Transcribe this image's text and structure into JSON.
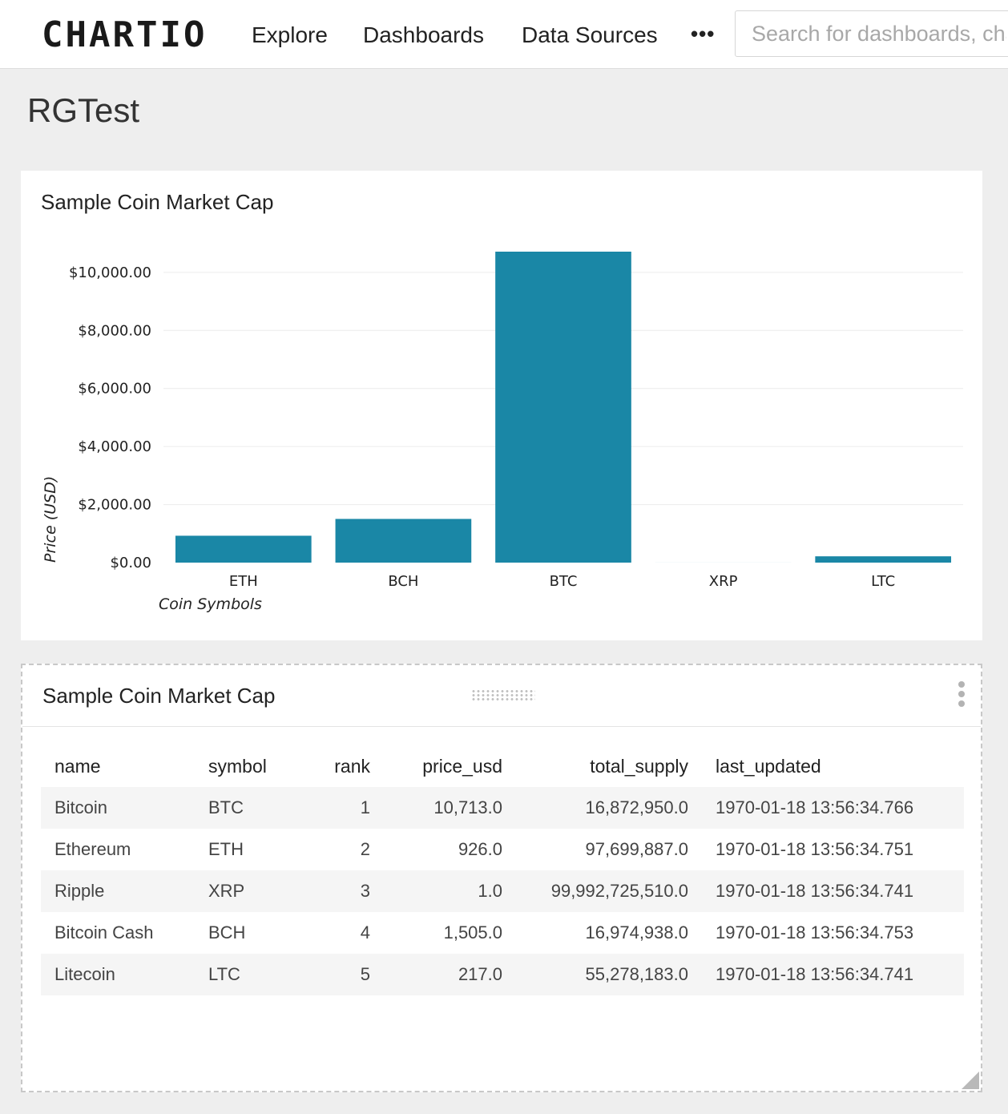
{
  "app": {
    "logo": "CHARTIO",
    "nav": [
      {
        "label": "Explore"
      },
      {
        "label": "Dashboards"
      },
      {
        "label": "Data Sources"
      }
    ],
    "more_label": "•••",
    "search_placeholder": "Search for dashboards, charts"
  },
  "dashboard": {
    "title": "RGTest"
  },
  "chart_panel": {
    "title": "Sample Coin Market Cap"
  },
  "chart_data": {
    "type": "bar",
    "title": "Sample Coin Market Cap",
    "categories": [
      "ETH",
      "BCH",
      "BTC",
      "XRP",
      "LTC"
    ],
    "values": [
      926.0,
      1505.0,
      10713.0,
      1.0,
      217.0
    ],
    "xlabel": "Coin Symbols",
    "ylabel": "Price (USD)",
    "ylim": [
      0,
      10713
    ],
    "yticks": [
      0,
      2000,
      4000,
      6000,
      8000,
      10000
    ],
    "ytick_labels": [
      "$0.00",
      "$2,000.00",
      "$4,000.00",
      "$6,000.00",
      "$8,000.00",
      "$10,000.00"
    ],
    "grid": true,
    "bar_color": "#1a87a6"
  },
  "table_panel": {
    "title": "Sample Coin Market Cap",
    "columns": [
      "name",
      "symbol",
      "rank",
      "price_usd",
      "total_supply",
      "last_updated"
    ],
    "rows": [
      [
        "Bitcoin",
        "BTC",
        "1",
        "10,713.0",
        "16,872,950.0",
        "1970-01-18 13:56:34.766"
      ],
      [
        "Ethereum",
        "ETH",
        "2",
        "926.0",
        "97,699,887.0",
        "1970-01-18 13:56:34.751"
      ],
      [
        "Ripple",
        "XRP",
        "3",
        "1.0",
        "99,992,725,510.0",
        "1970-01-18 13:56:34.741"
      ],
      [
        "Bitcoin Cash",
        "BCH",
        "4",
        "1,505.0",
        "16,974,938.0",
        "1970-01-18 13:56:34.753"
      ],
      [
        "Litecoin",
        "LTC",
        "5",
        "217.0",
        "55,278,183.0",
        "1970-01-18 13:56:34.741"
      ]
    ]
  }
}
